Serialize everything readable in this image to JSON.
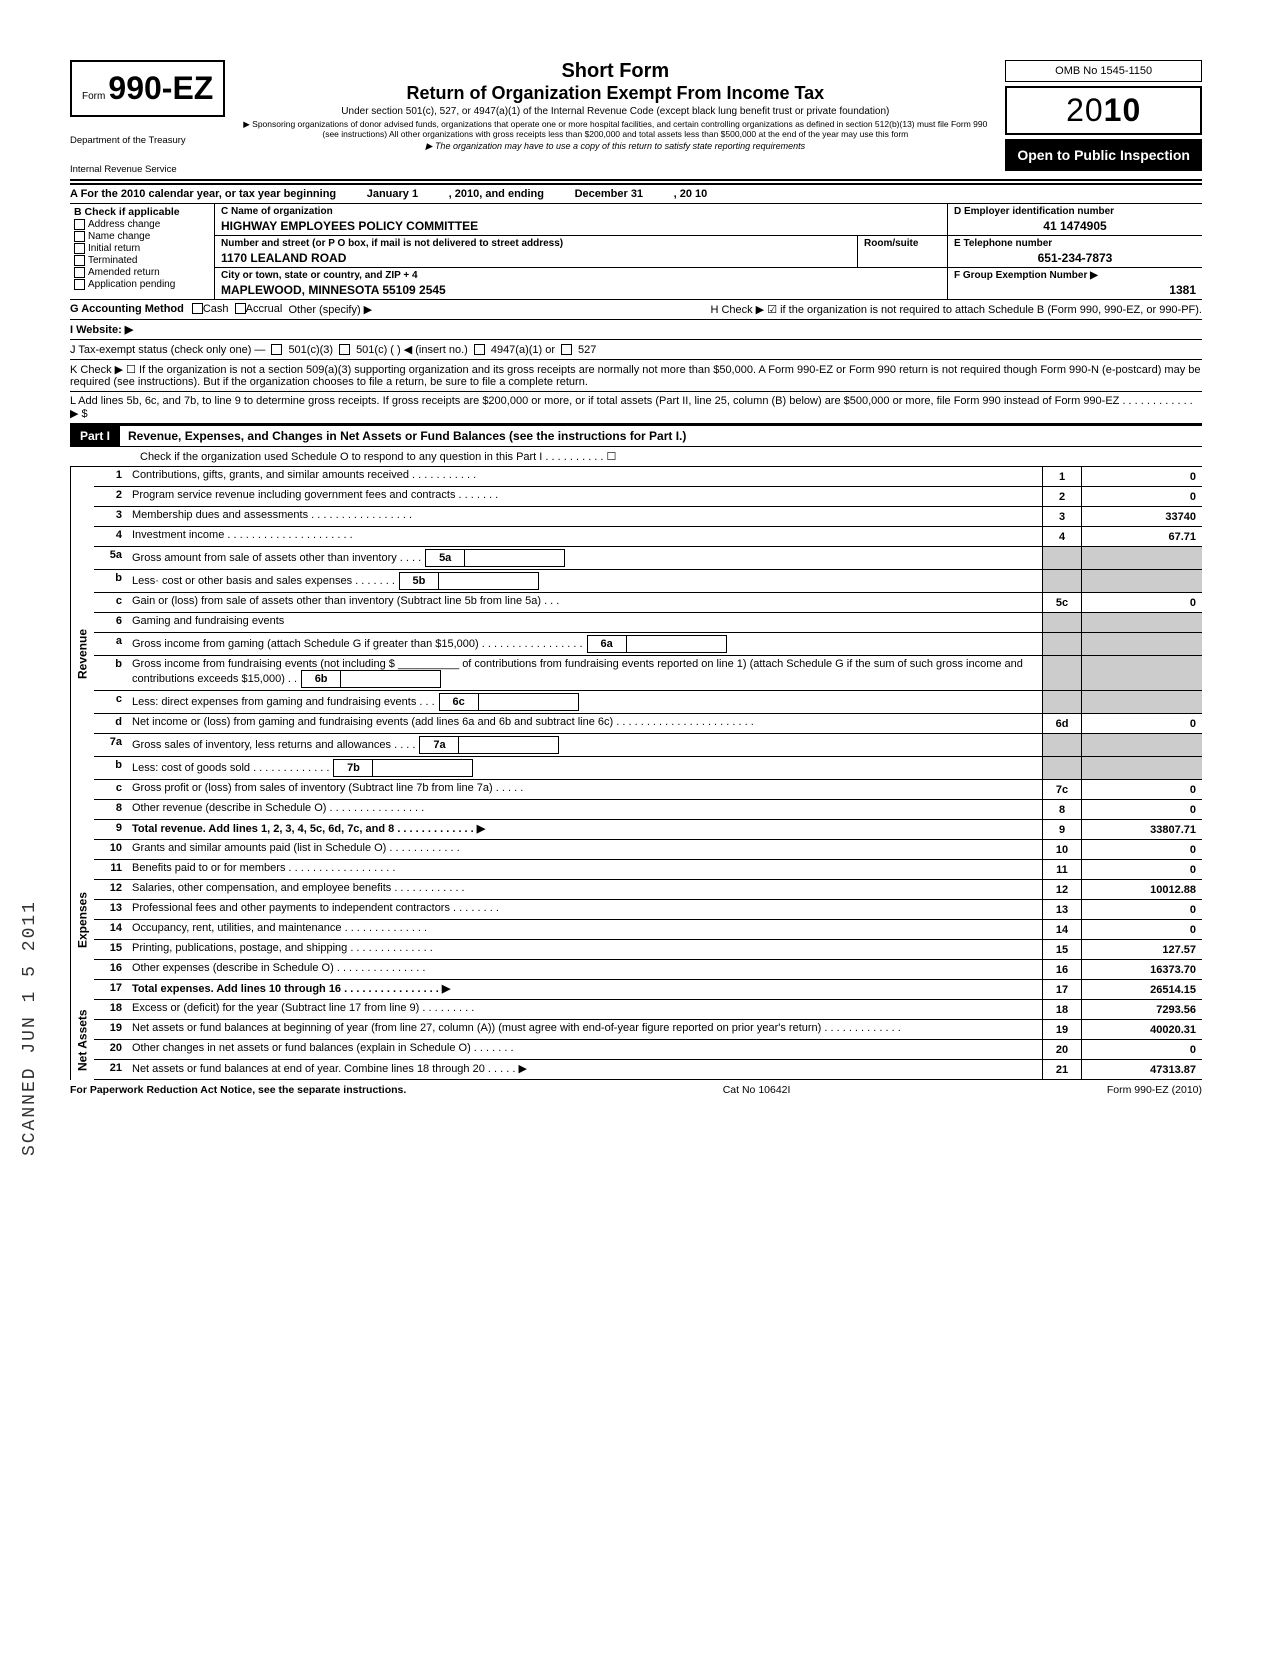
{
  "header": {
    "form_prefix": "Form",
    "form_number": "990-EZ",
    "short_form": "Short Form",
    "main_title": "Return of Organization Exempt From Income Tax",
    "subtitle": "Under section 501(c), 527, or 4947(a)(1) of the Internal Revenue Code (except black lung benefit trust or private foundation)",
    "note1": "▶ Sponsoring organizations of donor advised funds, organizations that operate one or more hospital facilities, and certain controlling organizations as defined in section 512(b)(13) must file Form 990 (see instructions) All other organizations with gross receipts less than $200,000 and total assets less than $500,000 at the end of the year may use this form",
    "note2": "▶ The organization may have to use a copy of this return to satisfy state reporting requirements",
    "omb": "OMB No 1545-1150",
    "year_prefix": "20",
    "year_bold": "10",
    "open_public": "Open to Public Inspection",
    "dept": "Department of the Treasury",
    "irs": "Internal Revenue Service"
  },
  "section_a": {
    "line": "A  For the 2010 calendar year, or tax year beginning",
    "begin_label": "January 1",
    "mid": ", 2010, and ending",
    "end_label": "December 31",
    "year_suffix": ", 20   10"
  },
  "section_b": {
    "title": "B  Check if applicable",
    "items": [
      "Address change",
      "Name change",
      "Initial return",
      "Terminated",
      "Amended return",
      "Application pending"
    ]
  },
  "section_c": {
    "name_label": "C  Name of organization",
    "name_val": "HIGHWAY EMPLOYEES POLICY COMMITTEE",
    "addr_label": "Number and street (or P O  box, if mail is not delivered to street address)",
    "room_label": "Room/suite",
    "addr_val": "1170 LEALAND ROAD",
    "city_label": "City or town, state or country, and ZIP + 4",
    "city_val": "MAPLEWOOD, MINNESOTA 55109 2545"
  },
  "section_d": {
    "ein_label": "D Employer identification number",
    "ein_val": "41 1474905",
    "tel_label": "E  Telephone number",
    "tel_val": "651-234-7873",
    "grp_label": "F  Group Exemption Number ▶",
    "grp_val": "1381"
  },
  "row_g": "G  Accounting Method",
  "g_cash": "Cash",
  "g_accrual": "Accrual",
  "g_other": "Other (specify) ▶",
  "row_h": "H  Check ▶ ☑ if the organization is not required to attach Schedule B (Form 990, 990-EZ, or 990-PF).",
  "row_i": "I   Website: ▶",
  "row_j": "J  Tax-exempt status (check only one) —",
  "j_opts": [
    "501(c)(3)",
    "501(c) (        ) ◀ (insert no.)",
    "4947(a)(1) or",
    "527"
  ],
  "row_k": "K  Check ▶  ☐   If the organization is not a section 509(a)(3) supporting organization and its gross receipts are normally not more than $50,000.  A Form 990-EZ or Form 990 return is not required though Form 990-N (e-postcard) may be required (see instructions). But if the organization chooses to file a return, be sure to file a complete return.",
  "row_l": "L  Add lines 5b, 6c, and 7b, to line 9 to determine gross receipts. If gross receipts are $200,000 or more, or if total assets (Part II, line 25, column (B) below) are $500,000 or more, file Form 990 instead of Form 990-EZ  .  .  .  .  .  .  .  .  .  .  .  .  ▶  $",
  "part1": {
    "label": "Part I",
    "title": "Revenue, Expenses, and Changes in Net Assets or Fund Balances (see the instructions for Part I.)",
    "check_note": "Check if the organization used Schedule O to respond to any question in this Part I  .  .  .  .  .  .  .  .  .  .  ☐"
  },
  "sides": {
    "revenue": "Revenue",
    "expenses": "Expenses",
    "netassets": "Net Assets"
  },
  "lines": [
    {
      "num": "1",
      "desc": "Contributions, gifts, grants, and similar amounts received .  .  .  .  .  .  .  .  .  .  .",
      "box": "1",
      "val": "0"
    },
    {
      "num": "2",
      "desc": "Program service revenue including government fees and contracts  .  .  .  .  .  .  .",
      "box": "2",
      "val": "0"
    },
    {
      "num": "3",
      "desc": "Membership dues and assessments .  .  .  .  .  .  .  .  .  .  .  .  .  .  .  .  .",
      "box": "3",
      "val": "33740"
    },
    {
      "num": "4",
      "desc": "Investment income  .  .  .  .  .  .  .  .  .  .  .  .  .  .  .  .  .  .  .  .  .",
      "box": "4",
      "val": "67.71"
    },
    {
      "num": "5a",
      "desc": "Gross amount from sale of assets other than inventory  .  .  .  .",
      "sub": "5a"
    },
    {
      "num": "b",
      "desc": "Less· cost or other basis and sales expenses .  .  .  .  .  .  .",
      "sub": "5b"
    },
    {
      "num": "c",
      "desc": "Gain or (loss) from sale of assets other than inventory (Subtract line 5b from line 5a) .  .  .",
      "box": "5c",
      "val": "0"
    },
    {
      "num": "6",
      "desc": "Gaming and fundraising events"
    },
    {
      "num": "a",
      "desc": "Gross income from gaming (attach Schedule G if greater than $15,000) .  .  .  .  .  .  .  .  .  .  .  .  .  .  .  .  .",
      "sub": "6a"
    },
    {
      "num": "b",
      "desc": "Gross income from fundraising events (not including $ __________ of contributions from fundraising events reported on line 1) (attach Schedule G if the sum of such gross income and contributions exceeds $15,000) .  .",
      "sub": "6b"
    },
    {
      "num": "c",
      "desc": "Less: direct expenses from gaming and fundraising events  .  .  .",
      "sub": "6c"
    },
    {
      "num": "d",
      "desc": "Net income or (loss) from gaming and fundraising events (add lines 6a and 6b and subtract line 6c)  .  .  .  .  .  .  .  .  .  .  .  .  .  .  .  .  .  .  .  .  .  .  .",
      "box": "6d",
      "val": "0"
    },
    {
      "num": "7a",
      "desc": "Gross sales of inventory, less returns and allowances  .  .  .  .",
      "sub": "7a"
    },
    {
      "num": "b",
      "desc": "Less: cost of goods sold  .  .  .  .  .  .  .  .  .  .  .  .  .",
      "sub": "7b"
    },
    {
      "num": "c",
      "desc": "Gross profit or (loss) from sales of inventory (Subtract line 7b from line 7a)  .  .  .  .  .",
      "box": "7c",
      "val": "0"
    },
    {
      "num": "8",
      "desc": "Other revenue (describe in Schedule O) .  .  .  .  .  .  .  .  .  .  .  .  .  .  .  .",
      "box": "8",
      "val": "0"
    },
    {
      "num": "9",
      "desc": "Total revenue. Add lines 1, 2, 3, 4, 5c, 6d, 7c, and 8  .  .  .  .  .  .  .  .  .  .  .  .  . ▶",
      "box": "9",
      "val": "33807.71",
      "bold": true
    },
    {
      "num": "10",
      "desc": "Grants and similar amounts paid (list in Schedule O)  .  .  .  .  .  .  .  .  .  .  .  .",
      "box": "10",
      "val": "0"
    },
    {
      "num": "11",
      "desc": "Benefits paid to or for members  .  .  .  .  .  .  .  .  .  .  .  .  .  .  .  .  .  .",
      "box": "11",
      "val": "0"
    },
    {
      "num": "12",
      "desc": "Salaries, other compensation, and employee benefits .  .  .  .  .  .  .  .  .  .  .  .",
      "box": "12",
      "val": "10012.88"
    },
    {
      "num": "13",
      "desc": "Professional fees and other payments to independent contractors .  .  .  .  .  .  .  .",
      "box": "13",
      "val": "0"
    },
    {
      "num": "14",
      "desc": "Occupancy, rent, utilities, and maintenance  .  .  .  .  .  .  .  .  .  .  .  .  .  .",
      "box": "14",
      "val": "0"
    },
    {
      "num": "15",
      "desc": "Printing, publications, postage, and shipping .  .  .  .  .  .  .  .  .  .  .  .  .  .",
      "box": "15",
      "val": "127.57"
    },
    {
      "num": "16",
      "desc": "Other expenses (describe in Schedule O) .  .  .  .  .  .  .  .  .  .  .  .  .  .  .",
      "box": "16",
      "val": "16373.70"
    },
    {
      "num": "17",
      "desc": "Total expenses. Add lines 10 through 16 .  .  .  .  .  .  .  .  .  .  .  .  .  .  .  . ▶",
      "box": "17",
      "val": "26514.15",
      "bold": true
    },
    {
      "num": "18",
      "desc": "Excess or (deficit) for the year (Subtract line 17 from line 9)  .  .  .  .  .  .  .  .  .",
      "box": "18",
      "val": "7293.56"
    },
    {
      "num": "19",
      "desc": "Net assets or fund balances at beginning of year (from line 27, column (A)) (must agree with end-of-year figure reported on prior year's return)  .  .  .  .  .  .  .  .  .  .  .  .  .",
      "box": "19",
      "val": "40020.31"
    },
    {
      "num": "20",
      "desc": "Other changes in net assets or fund balances (explain in Schedule O) .  .  .  .  .  .  .",
      "box": "20",
      "val": "0"
    },
    {
      "num": "21",
      "desc": "Net assets or fund balances at end of year. Combine lines 18 through 20  .  .  .  .  . ▶",
      "box": "21",
      "val": "47313.87"
    }
  ],
  "footer": {
    "left": "For Paperwork Reduction Act Notice, see the separate instructions.",
    "mid": "Cat No  10642I",
    "right": "Form 990-EZ (2010)"
  },
  "stamp": "SCANNED JUN 1 5 2011"
}
